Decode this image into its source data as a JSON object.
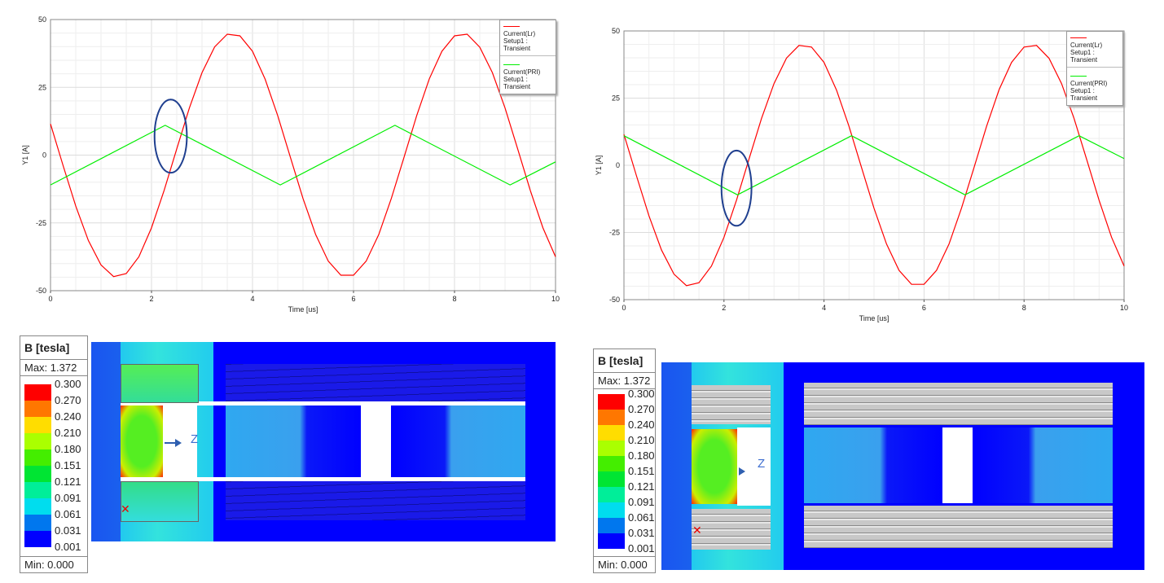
{
  "chart_data": [
    {
      "type": "line",
      "title": "",
      "xlabel": "Time [us]",
      "ylabel": "Y1 [A]",
      "xlim": [
        0,
        10
      ],
      "ylim": [
        -50,
        50
      ],
      "xticks": [
        "0",
        "2",
        "4",
        "6",
        "8",
        "10"
      ],
      "yticks": [
        "-50",
        "-25",
        "0",
        "25",
        "50"
      ],
      "grid": true,
      "legend_placement": "top-right",
      "series": [
        {
          "name": "Current(Lr)",
          "sub": "Setup1 : Transient",
          "color": "#ff0000",
          "x": [
            0,
            0.25,
            0.5,
            0.75,
            1,
            1.25,
            1.5,
            1.75,
            2,
            2.25,
            2.5,
            2.75,
            3,
            3.25,
            3.5,
            3.75,
            4,
            4.25,
            4.5,
            4.75,
            5,
            5.25,
            5.5,
            5.75,
            6,
            6.25,
            6.5,
            6.75,
            7,
            7.25,
            7.5,
            7.75,
            8,
            8.25,
            8.5,
            8.75,
            9,
            9.25,
            9.5,
            9.75,
            10
          ],
          "y": [
            11.5,
            -3.9,
            -18.8,
            -31.5,
            -40.5,
            -44.8,
            -43.7,
            -37.5,
            -26.8,
            -13.0,
            2.3,
            17.4,
            30.4,
            39.9,
            44.6,
            44.0,
            38.3,
            28.0,
            14.5,
            -0.8,
            -16.0,
            -29.3,
            -39.1,
            -44.3,
            -44.3,
            -39.1,
            -29.3,
            -15.9,
            -0.8,
            14.5,
            28.1,
            38.3,
            44.0,
            44.6,
            39.8,
            30.4,
            17.4,
            2.3,
            -13.0,
            -26.8,
            -37.5
          ]
        },
        {
          "name": "Current(PRI)",
          "sub": "Setup1 : Transient",
          "color": "#00ee00",
          "x": [
            0,
            2.27,
            4.55,
            6.82,
            9.1,
            10
          ],
          "y": [
            -11,
            11,
            -11,
            11,
            -11,
            -2.5
          ]
        }
      ],
      "annotation_ellipse": {
        "cx": 2.38,
        "cy": 7,
        "rx": 0.32,
        "ry": 13.5,
        "color": "#1f3f8f"
      }
    },
    {
      "type": "line",
      "title": "",
      "xlabel": "Time [us]",
      "ylabel": "Y1 [A]",
      "xlim": [
        0,
        10
      ],
      "ylim": [
        -50,
        50
      ],
      "xticks": [
        "0",
        "2",
        "4",
        "6",
        "8",
        "10"
      ],
      "yticks": [
        "-50",
        "-25",
        "0",
        "25",
        "50"
      ],
      "grid": true,
      "legend_placement": "top-right",
      "series": [
        {
          "name": "Current(Lr)",
          "sub": "Setup1 : Transient",
          "color": "#ff0000",
          "x": [
            0,
            0.25,
            0.5,
            0.75,
            1,
            1.25,
            1.5,
            1.75,
            2,
            2.25,
            2.5,
            2.75,
            3,
            3.25,
            3.5,
            3.75,
            4,
            4.25,
            4.5,
            4.75,
            5,
            5.25,
            5.5,
            5.75,
            6,
            6.25,
            6.5,
            6.75,
            7,
            7.25,
            7.5,
            7.75,
            8,
            8.25,
            8.5,
            8.75,
            9,
            9.25,
            9.5,
            9.75,
            10
          ],
          "y": [
            11.5,
            -3.9,
            -18.8,
            -31.5,
            -40.5,
            -44.8,
            -43.7,
            -37.5,
            -26.8,
            -13.0,
            2.3,
            17.4,
            30.4,
            39.9,
            44.6,
            44.0,
            38.3,
            28.0,
            14.5,
            -0.8,
            -16.0,
            -29.3,
            -39.1,
            -44.3,
            -44.3,
            -39.1,
            -29.3,
            -15.9,
            -0.8,
            14.5,
            28.1,
            38.3,
            44.0,
            44.6,
            39.8,
            30.4,
            17.4,
            2.3,
            -13.0,
            -26.8,
            -37.5
          ]
        },
        {
          "name": "Current(PRI)",
          "sub": "Setup1 : Transient",
          "color": "#00ee00",
          "x": [
            0,
            2.27,
            4.55,
            6.82,
            9.1,
            10
          ],
          "y": [
            11,
            -11,
            11,
            -11,
            11,
            2.5
          ]
        }
      ],
      "annotation_ellipse": {
        "cx": 2.25,
        "cy": -8.5,
        "rx": 0.3,
        "ry": 14,
        "color": "#1f3f8f"
      }
    }
  ],
  "field_legend": {
    "title": "B [tesla]",
    "max": "Max: 1.372",
    "min": "Min: 0.000",
    "labels": [
      "0.300",
      "0.270",
      "0.240",
      "0.210",
      "0.180",
      "0.151",
      "0.121",
      "0.091",
      "0.061",
      "0.031",
      "0.001"
    ],
    "colors": [
      "#ff0000",
      "#ff7700",
      "#ffdd00",
      "#aaff00",
      "#44ee00",
      "#00e533",
      "#00ee99",
      "#00ddee",
      "#0077ee",
      "#0000ff"
    ]
  },
  "axis_label": "Z"
}
